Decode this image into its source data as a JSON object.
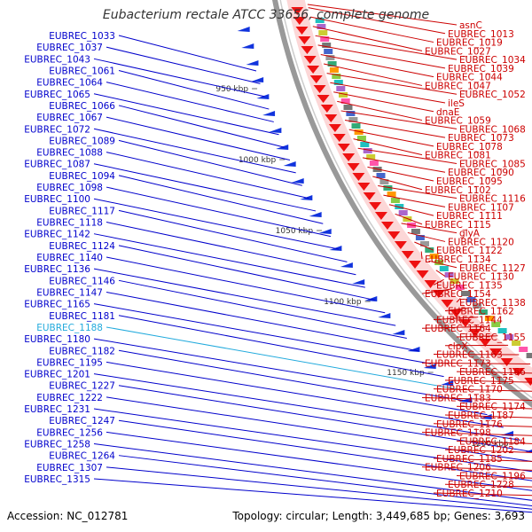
{
  "title": "Eubacterium rectale ATCC 33656, complete genome",
  "footer": {
    "accession": "Accession: NC_012781",
    "summary": "Topology: circular; Length: 3,449,685 bp; Genes: 3,693"
  },
  "scale_labels": [
    "950 kbp",
    "1000 kbp",
    "1050 kbp",
    "1100 kbp",
    "1150 kbp",
    "1200 kbp"
  ],
  "colors": {
    "left_labels": "#0000cc",
    "left_highlight": "#22aadd",
    "right_labels": "#cc0000",
    "backbone": "#888888",
    "forward_genes": "#1133dd",
    "reverse_genes": "#ee1111"
  },
  "left_genes": [
    {
      "label": "EUBREC_1033"
    },
    {
      "label": "EUBREC_1037"
    },
    {
      "label": "EUBREC_1043"
    },
    {
      "label": "EUBREC_1061"
    },
    {
      "label": "EUBREC_1064"
    },
    {
      "label": "EUBREC_1065"
    },
    {
      "label": "EUBREC_1066"
    },
    {
      "label": "EUBREC_1067"
    },
    {
      "label": "EUBREC_1072"
    },
    {
      "label": "EUBREC_1089"
    },
    {
      "label": "EUBREC_1088"
    },
    {
      "label": "EUBREC_1087"
    },
    {
      "label": "EUBREC_1094"
    },
    {
      "label": "EUBREC_1098"
    },
    {
      "label": "EUBREC_1100"
    },
    {
      "label": "EUBREC_1117"
    },
    {
      "label": "EUBREC_1118"
    },
    {
      "label": "EUBREC_1142"
    },
    {
      "label": "EUBREC_1124"
    },
    {
      "label": "EUBREC_1140"
    },
    {
      "label": "EUBREC_1136"
    },
    {
      "label": "EUBREC_1146"
    },
    {
      "label": "EUBREC_1147"
    },
    {
      "label": "EUBREC_1165"
    },
    {
      "label": "EUBREC_1181"
    },
    {
      "label": "EUBREC_1188",
      "highlight": true
    },
    {
      "label": "EUBREC_1180"
    },
    {
      "label": "EUBREC_1182"
    },
    {
      "label": "EUBREC_1195"
    },
    {
      "label": "EUBREC_1201"
    },
    {
      "label": "EUBREC_1227"
    },
    {
      "label": "EUBREC_1222"
    },
    {
      "label": "EUBREC_1231"
    },
    {
      "label": "EUBREC_1247"
    },
    {
      "label": "EUBREC_1256"
    },
    {
      "label": "EUBREC_1258"
    },
    {
      "label": "EUBREC_1264"
    },
    {
      "label": "EUBREC_1307"
    },
    {
      "label": "EUBREC_1315"
    }
  ],
  "right_genes": [
    {
      "label": "asnC"
    },
    {
      "label": "EUBREC_1013"
    },
    {
      "label": "EUBREC_1019"
    },
    {
      "label": "EUBREC_1027"
    },
    {
      "label": "EUBREC_1034"
    },
    {
      "label": "EUBREC_1039"
    },
    {
      "label": "EUBREC_1044"
    },
    {
      "label": "EUBREC_1047"
    },
    {
      "label": "EUBREC_1052"
    },
    {
      "label": "ileS"
    },
    {
      "label": "dnaE"
    },
    {
      "label": "EUBREC_1059"
    },
    {
      "label": "EUBREC_1068"
    },
    {
      "label": "EUBREC_1073"
    },
    {
      "label": "EUBREC_1078"
    },
    {
      "label": "EUBREC_1081"
    },
    {
      "label": "EUBREC_1085"
    },
    {
      "label": "EUBREC_1090"
    },
    {
      "label": "EUBREC_1095"
    },
    {
      "label": "EUBREC_1102"
    },
    {
      "label": "EUBREC_1116"
    },
    {
      "label": "EUBREC_1107"
    },
    {
      "label": "EUBREC_1111"
    },
    {
      "label": "EUBREC_1115"
    },
    {
      "label": "glyA"
    },
    {
      "label": "EUBREC_1120"
    },
    {
      "label": "EUBREC_1122"
    },
    {
      "label": "EUBREC_1134"
    },
    {
      "label": "EUBREC_1127"
    },
    {
      "label": "EUBREC_1130"
    },
    {
      "label": "EUBREC_1135"
    },
    {
      "label": "EUBREC_1154"
    },
    {
      "label": "EUBREC_1138"
    },
    {
      "label": "EUBREC_1162"
    },
    {
      "label": "EUBREC_1144"
    },
    {
      "label": "EUBREC_1164"
    },
    {
      "label": "EUBREC_1155"
    },
    {
      "label": "clpX"
    },
    {
      "label": "EUBREC_1163"
    },
    {
      "label": "EUBREC_1173"
    },
    {
      "label": "EUBREC_1166"
    },
    {
      "label": "EUBREC_1175"
    },
    {
      "label": "EUBREC_1170"
    },
    {
      "label": "EUBREC_1183"
    },
    {
      "label": "EUBREC_1174"
    },
    {
      "label": "EUBREC_1187"
    },
    {
      "label": "EUBREC_1176"
    },
    {
      "label": "EUBREC_1198"
    },
    {
      "label": "EUBREC_1184"
    },
    {
      "label": "EUBREC_1202"
    },
    {
      "label": "EUBREC_1185"
    },
    {
      "label": "EUBREC_1206"
    },
    {
      "label": "EUBREC_1196"
    },
    {
      "label": "EUBREC_1228"
    },
    {
      "label": "EUBREC_1210"
    }
  ]
}
